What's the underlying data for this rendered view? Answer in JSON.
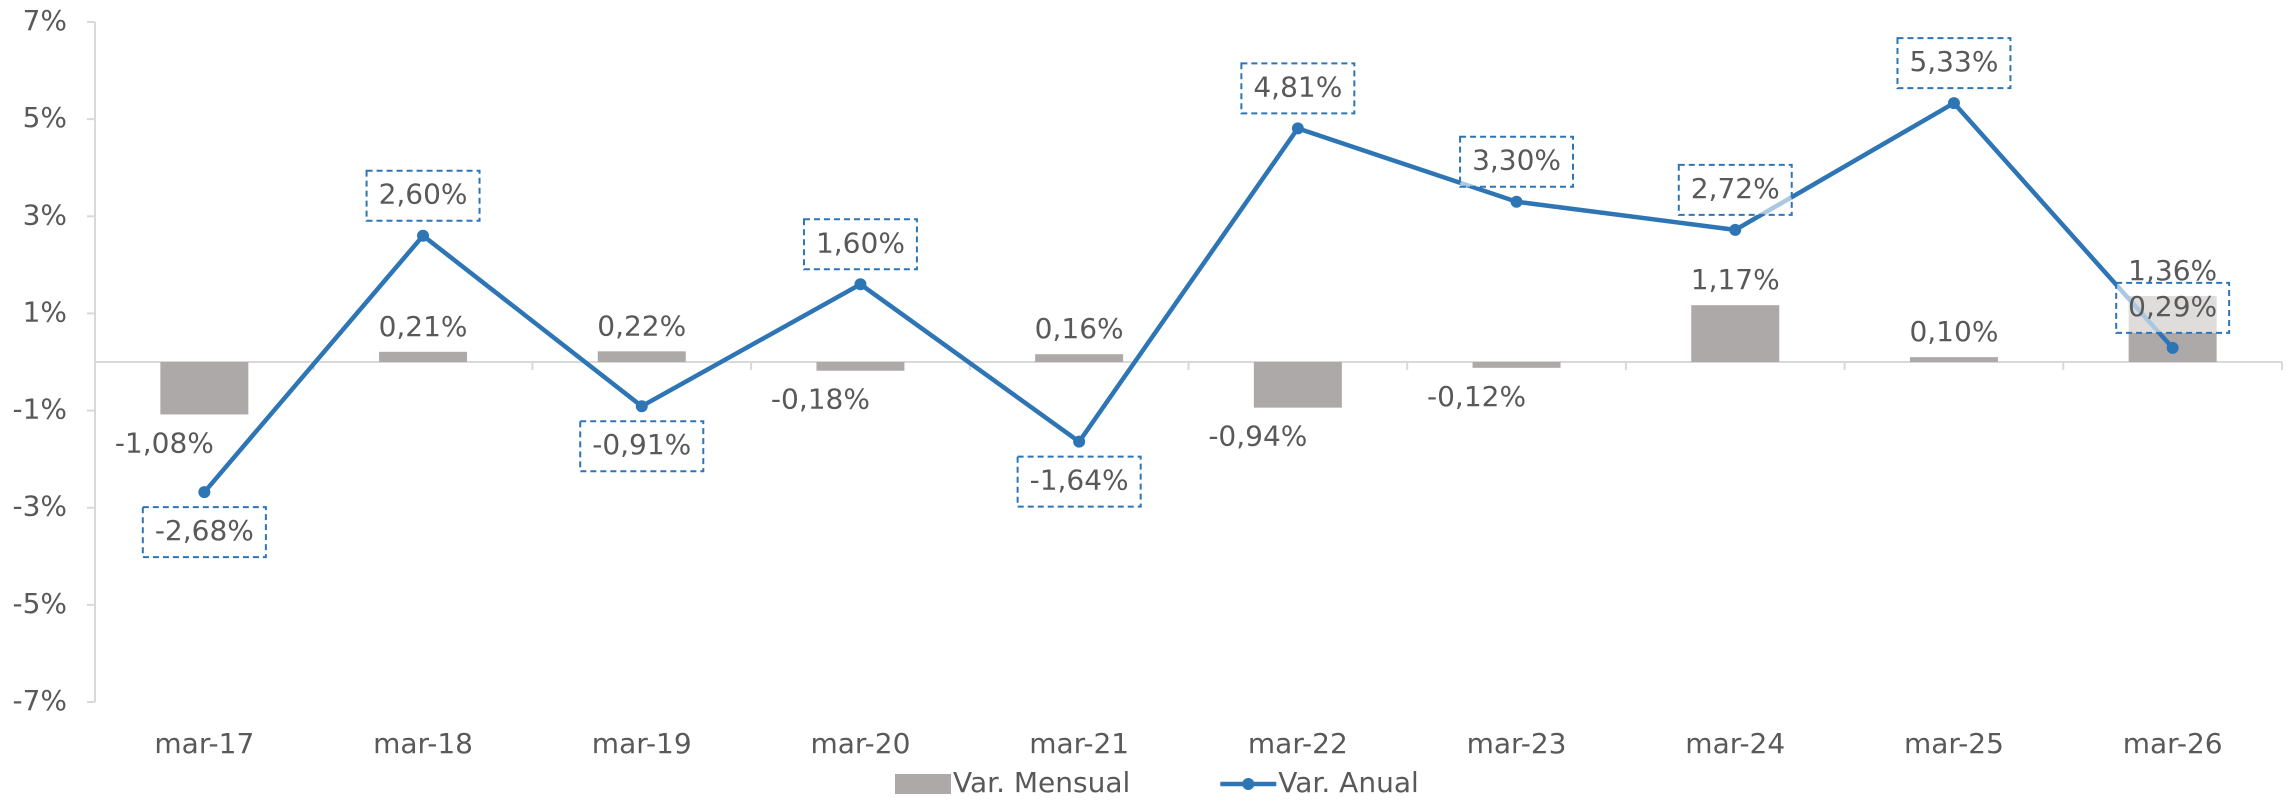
{
  "chart_data": {
    "type": "bar",
    "categories": [
      "mar-17",
      "mar-18",
      "mar-19",
      "mar-20",
      "mar-21",
      "mar-22",
      "mar-23",
      "mar-24",
      "mar-25",
      "mar-26"
    ],
    "series": [
      {
        "name": "Var. Mensual",
        "type": "bar",
        "color": "#aea9a9",
        "values": [
          -1.08,
          0.21,
          0.22,
          -0.18,
          0.16,
          -0.94,
          -0.12,
          1.17,
          0.1,
          1.36
        ],
        "value_labels": [
          "-1,08%",
          "0,21%",
          "0,22%",
          "-0,18%",
          "0,16%",
          "-0,94%",
          "-0,12%",
          "1,17%",
          "0,10%",
          "1,36%"
        ]
      },
      {
        "name": "Var. Anual",
        "type": "line",
        "color": "#2e75b6",
        "values": [
          -2.68,
          2.6,
          -0.91,
          1.6,
          -1.64,
          4.81,
          3.3,
          2.72,
          5.33,
          0.29
        ],
        "value_labels": [
          "-2,68%",
          "2,60%",
          "-0,91%",
          "1,60%",
          "-1,64%",
          "4,81%",
          "3,30%",
          "2,72%",
          "5,33%",
          "0,29%"
        ]
      }
    ],
    "ylim": [
      -7,
      7
    ],
    "yticks": [
      {
        "value": -7,
        "label": "-7%"
      },
      {
        "value": -5,
        "label": "-5%"
      },
      {
        "value": -3,
        "label": "-3%"
      },
      {
        "value": -1,
        "label": "-1%"
      },
      {
        "value": 1,
        "label": "1%"
      },
      {
        "value": 3,
        "label": "3%"
      },
      {
        "value": 5,
        "label": "5%"
      },
      {
        "value": 7,
        "label": "7%"
      }
    ],
    "legend": "bottom"
  }
}
